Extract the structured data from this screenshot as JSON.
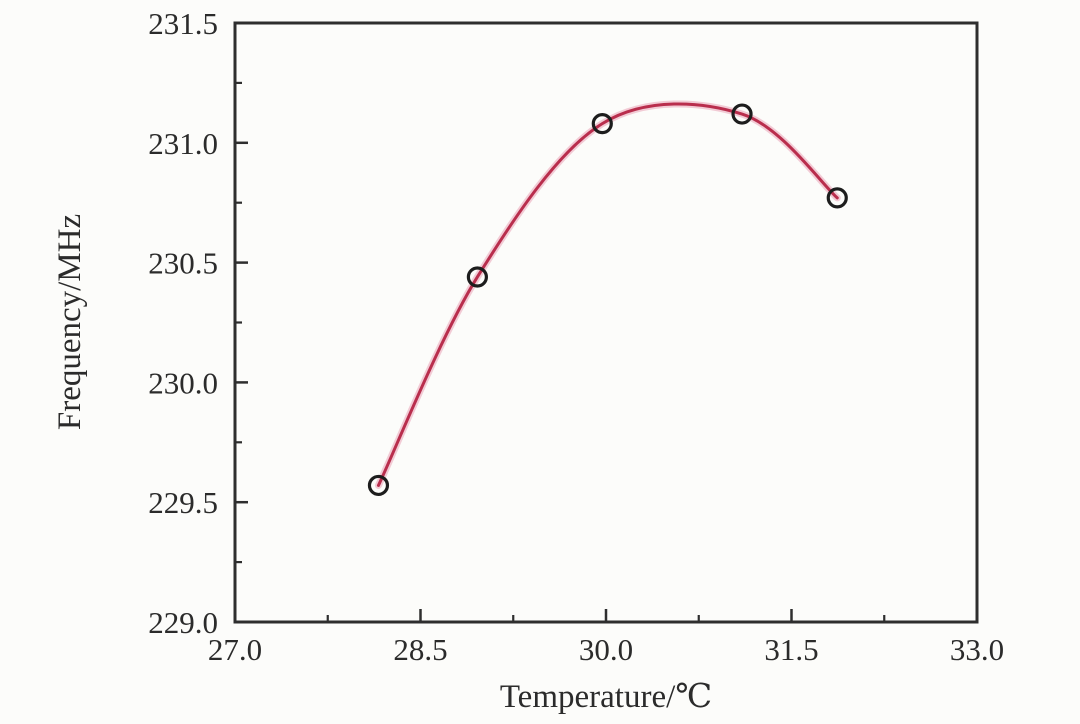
{
  "chart_data": {
    "type": "scatter",
    "title": "",
    "xlabel": "Temperature/℃",
    "ylabel": "Frequency/MHz",
    "x": [
      28.16,
      28.96,
      29.97,
      31.1,
      31.87
    ],
    "y": [
      229.57,
      230.44,
      231.08,
      231.12,
      230.77
    ],
    "fit_line": "smooth spline through points, peak near (30.7, 231.19)",
    "xlim": [
      27.0,
      33.0
    ],
    "ylim": [
      229.0,
      231.5
    ],
    "xticks": [
      27.0,
      28.5,
      30.0,
      31.5,
      33.0
    ],
    "xtick_labels": [
      "27.0",
      "28.5",
      "30.0",
      "31.5",
      "33.0"
    ],
    "x_minor_ticks": [
      27.75,
      29.25,
      30.75,
      32.25
    ],
    "yticks": [
      229.0,
      229.5,
      230.0,
      230.5,
      231.0,
      231.5
    ],
    "ytick_labels": [
      "229.0",
      "229.5",
      "230.0",
      "230.5",
      "231.0",
      "231.5"
    ],
    "y_minor_ticks": [
      229.25,
      229.75,
      230.25,
      230.75,
      231.25
    ],
    "grid": false,
    "legend": null,
    "marker": "open-circle",
    "colors": {
      "line": "#b92e4d",
      "line_halo": "#e9a3b6",
      "marker_stroke": "#1d1d1d",
      "axis": "#2e2e2e",
      "text": "#2b2b2b",
      "background": "#fcfcfa"
    }
  }
}
